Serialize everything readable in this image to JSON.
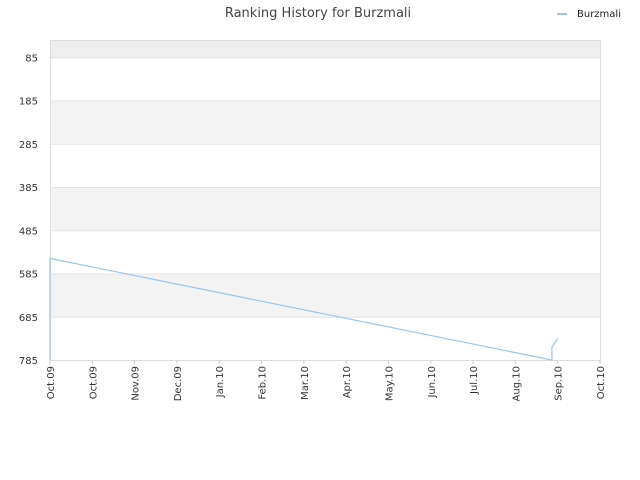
{
  "chart_data": {
    "type": "line",
    "title": "Ranking History for Burzmali",
    "xlabel": "",
    "ylabel": "",
    "y_inverted": true,
    "ylim": [
      785,
      45
    ],
    "y_ticks": [
      "85",
      "185",
      "285",
      "385",
      "485",
      "585",
      "685",
      "785"
    ],
    "x_ticks": [
      "Oct.09",
      "Oct.09",
      "Nov.09",
      "Dec.09",
      "Jan.10",
      "Feb.10",
      "Mar.10",
      "Apr.10",
      "May.10",
      "Jun.10",
      "Jul.10",
      "Aug.10",
      "Sep.10",
      "Oct.10"
    ],
    "grid": true,
    "legend_position": "top-right",
    "series": [
      {
        "name": "Burzmali",
        "color": "#99c6ee",
        "points": [
          {
            "x": "2009-10-01",
            "y": 785
          },
          {
            "x": "2009-10-01",
            "y": 550
          },
          {
            "x": "2010-09-10",
            "y": 785
          },
          {
            "x": "2010-09-10",
            "y": 755
          },
          {
            "x": "2010-09-14",
            "y": 735
          }
        ]
      }
    ]
  }
}
